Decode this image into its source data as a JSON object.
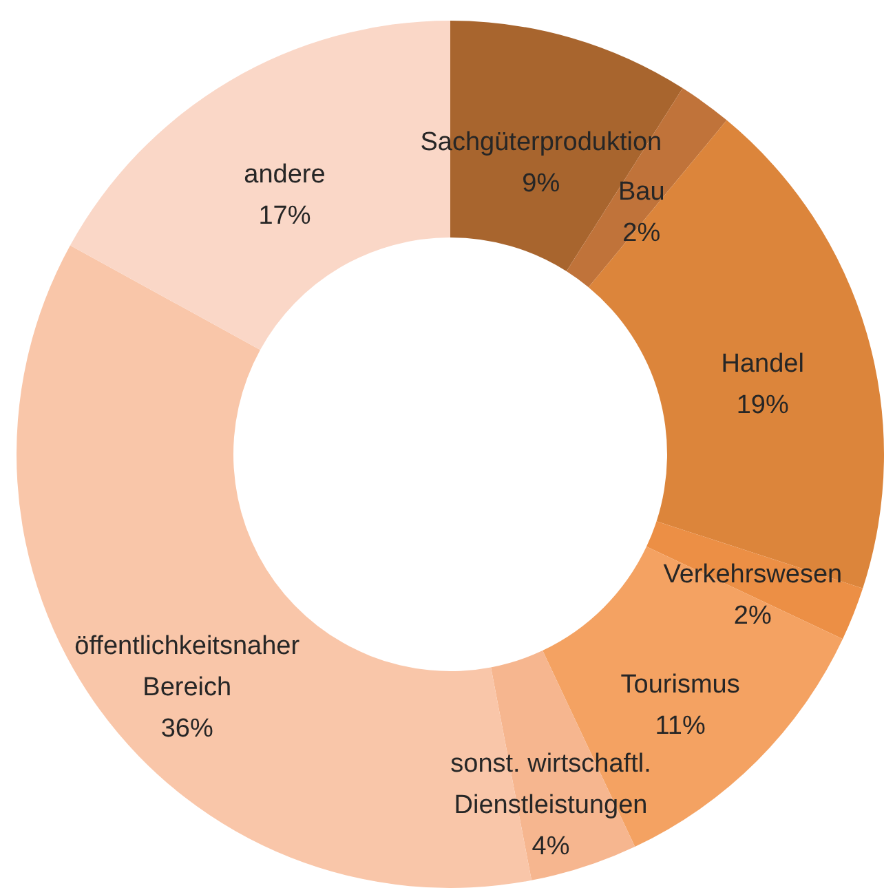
{
  "chart_data": {
    "type": "donut",
    "categories": [
      "Sachgüterproduktion",
      "Bau",
      "Handel",
      "Verkehrswesen",
      "Tourismus",
      "sonst. wirtschaftl. Dienstleistungen",
      "öffentlichkeitsnaher Bereich",
      "andere"
    ],
    "values": [
      9,
      2,
      19,
      2,
      11,
      4,
      36,
      17
    ],
    "value_labels": [
      "9%",
      "2%",
      "19%",
      "2%",
      "11%",
      "4%",
      "36%",
      "17%"
    ],
    "colors": [
      "#a8652e",
      "#c0733a",
      "#dc853b",
      "#ec8f45",
      "#f4a262",
      "#f6b68f",
      "#f9c6a9",
      "#fad7c7"
    ]
  }
}
